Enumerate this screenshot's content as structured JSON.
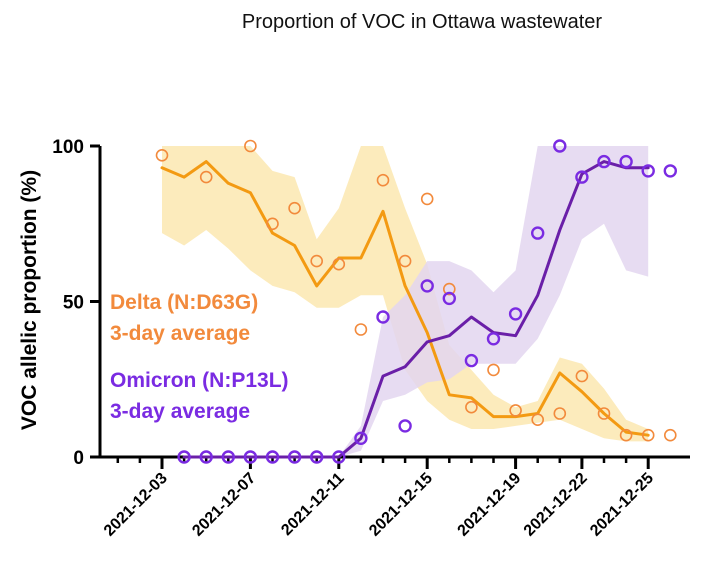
{
  "chart_data": {
    "type": "line",
    "title": "Proportion of VOC in Ottawa wastewater",
    "ylabel": "VOC allelic proportion (%)",
    "xlabel": "",
    "ylim": [
      0,
      100
    ],
    "yticks": [
      "0",
      "50",
      "100"
    ],
    "x_tick_labels": [
      "2021-12-03",
      "2021-12-07",
      "2021-12-11",
      "2021-12-15",
      "2021-12-19",
      "2021-12-22",
      "2021-12-25"
    ],
    "grid": false,
    "legend": "inline annotations",
    "annotations": [
      {
        "line1": "Delta (N:D63G)",
        "line2": "3-day average",
        "color": "#f28a3c"
      },
      {
        "line1": "Omicron (N:P13L)",
        "line2": "3-day average",
        "color": "#7a2be2"
      }
    ],
    "series": [
      {
        "name": "Delta (N:D63G)",
        "color": "#f28a3c",
        "line_color": "#f39a12",
        "band_color": "#fbe7b0",
        "points": [
          [
            "2021-12-03",
            97
          ],
          [
            "2021-12-05",
            90
          ],
          [
            "2021-12-07",
            100
          ],
          [
            "2021-12-08",
            75
          ],
          [
            "2021-12-09",
            80
          ],
          [
            "2021-12-10",
            63
          ],
          [
            "2021-12-11",
            62
          ],
          [
            "2021-12-12",
            41
          ],
          [
            "2021-12-13",
            89
          ],
          [
            "2021-12-14",
            63
          ],
          [
            "2021-12-15",
            83
          ],
          [
            "2021-12-16",
            54
          ],
          [
            "2021-12-17",
            16
          ],
          [
            "2021-12-18",
            28
          ],
          [
            "2021-12-19",
            15
          ],
          [
            "2021-12-20",
            12
          ],
          [
            "2021-12-21",
            14
          ],
          [
            "2021-12-22",
            26
          ],
          [
            "2021-12-23",
            14
          ],
          [
            "2021-12-24",
            7
          ],
          [
            "2021-12-25",
            7
          ],
          [
            "2021-12-26",
            7
          ]
        ],
        "average": [
          [
            "2021-12-03",
            93
          ],
          [
            "2021-12-04",
            90
          ],
          [
            "2021-12-05",
            95
          ],
          [
            "2021-12-06",
            88
          ],
          [
            "2021-12-07",
            85
          ],
          [
            "2021-12-08",
            72
          ],
          [
            "2021-12-09",
            68
          ],
          [
            "2021-12-10",
            55
          ],
          [
            "2021-12-11",
            64
          ],
          [
            "2021-12-12",
            64
          ],
          [
            "2021-12-13",
            79
          ],
          [
            "2021-12-14",
            55
          ],
          [
            "2021-12-15",
            40
          ],
          [
            "2021-12-16",
            20
          ],
          [
            "2021-12-17",
            19
          ],
          [
            "2021-12-18",
            13
          ],
          [
            "2021-12-19",
            13
          ],
          [
            "2021-12-20",
            14
          ],
          [
            "2021-12-21",
            27
          ],
          [
            "2021-12-22",
            21
          ],
          [
            "2021-12-23",
            14
          ],
          [
            "2021-12-24",
            8
          ],
          [
            "2021-12-25",
            7
          ]
        ],
        "band_low": [
          [
            "2021-12-03",
            72
          ],
          [
            "2021-12-04",
            68
          ],
          [
            "2021-12-05",
            73
          ],
          [
            "2021-12-06",
            67
          ],
          [
            "2021-12-07",
            60
          ],
          [
            "2021-12-08",
            55
          ],
          [
            "2021-12-09",
            53
          ],
          [
            "2021-12-10",
            48
          ],
          [
            "2021-12-11",
            48
          ],
          [
            "2021-12-12",
            52
          ],
          [
            "2021-12-13",
            52
          ],
          [
            "2021-12-14",
            28
          ],
          [
            "2021-12-15",
            18
          ],
          [
            "2021-12-16",
            12
          ],
          [
            "2021-12-17",
            9
          ],
          [
            "2021-12-18",
            9
          ],
          [
            "2021-12-19",
            10
          ],
          [
            "2021-12-20",
            11
          ],
          [
            "2021-12-21",
            12
          ],
          [
            "2021-12-22",
            9
          ],
          [
            "2021-12-23",
            6
          ],
          [
            "2021-12-24",
            5
          ],
          [
            "2021-12-25",
            5
          ]
        ],
        "band_high": [
          [
            "2021-12-03",
            100
          ],
          [
            "2021-12-04",
            100
          ],
          [
            "2021-12-05",
            100
          ],
          [
            "2021-12-06",
            100
          ],
          [
            "2021-12-07",
            100
          ],
          [
            "2021-12-08",
            92
          ],
          [
            "2021-12-09",
            90
          ],
          [
            "2021-12-10",
            70
          ],
          [
            "2021-12-11",
            80
          ],
          [
            "2021-12-12",
            100
          ],
          [
            "2021-12-13",
            100
          ],
          [
            "2021-12-14",
            80
          ],
          [
            "2021-12-15",
            62
          ],
          [
            "2021-12-16",
            36
          ],
          [
            "2021-12-17",
            28
          ],
          [
            "2021-12-18",
            20
          ],
          [
            "2021-12-19",
            16
          ],
          [
            "2021-12-20",
            18
          ],
          [
            "2021-12-21",
            32
          ],
          [
            "2021-12-22",
            30
          ],
          [
            "2021-12-23",
            22
          ],
          [
            "2021-12-24",
            12
          ],
          [
            "2021-12-25",
            9
          ]
        ]
      },
      {
        "name": "Omicron (N:P13L)",
        "color": "#7a2be2",
        "line_color": "#6a1fa8",
        "band_color": "#e3d6f0",
        "points": [
          [
            "2021-12-04",
            0
          ],
          [
            "2021-12-05",
            0
          ],
          [
            "2021-12-06",
            0
          ],
          [
            "2021-12-07",
            0
          ],
          [
            "2021-12-08",
            0
          ],
          [
            "2021-12-09",
            0
          ],
          [
            "2021-12-10",
            0
          ],
          [
            "2021-12-11",
            0
          ],
          [
            "2021-12-12",
            6
          ],
          [
            "2021-12-13",
            45
          ],
          [
            "2021-12-14",
            10
          ],
          [
            "2021-12-15",
            55
          ],
          [
            "2021-12-16",
            51
          ],
          [
            "2021-12-17",
            31
          ],
          [
            "2021-12-18",
            38
          ],
          [
            "2021-12-19",
            46
          ],
          [
            "2021-12-20",
            72
          ],
          [
            "2021-12-21",
            100
          ],
          [
            "2021-12-22",
            90
          ],
          [
            "2021-12-23",
            95
          ],
          [
            "2021-12-24",
            95
          ],
          [
            "2021-12-25",
            92
          ],
          [
            "2021-12-26",
            92
          ]
        ],
        "average": [
          [
            "2021-12-04",
            0
          ],
          [
            "2021-12-05",
            0
          ],
          [
            "2021-12-06",
            0
          ],
          [
            "2021-12-07",
            0
          ],
          [
            "2021-12-08",
            0
          ],
          [
            "2021-12-09",
            0
          ],
          [
            "2021-12-10",
            0
          ],
          [
            "2021-12-11",
            0
          ],
          [
            "2021-12-12",
            6
          ],
          [
            "2021-12-13",
            26
          ],
          [
            "2021-12-14",
            29
          ],
          [
            "2021-12-15",
            37
          ],
          [
            "2021-12-16",
            39
          ],
          [
            "2021-12-17",
            45
          ],
          [
            "2021-12-18",
            40
          ],
          [
            "2021-12-19",
            39
          ],
          [
            "2021-12-20",
            52
          ],
          [
            "2021-12-21",
            73
          ],
          [
            "2021-12-22",
            91
          ],
          [
            "2021-12-23",
            95
          ],
          [
            "2021-12-24",
            93
          ],
          [
            "2021-12-25",
            93
          ]
        ],
        "band_low": [
          [
            "2021-12-04",
            0
          ],
          [
            "2021-12-05",
            0
          ],
          [
            "2021-12-06",
            0
          ],
          [
            "2021-12-07",
            0
          ],
          [
            "2021-12-08",
            0
          ],
          [
            "2021-12-09",
            0
          ],
          [
            "2021-12-10",
            0
          ],
          [
            "2021-12-11",
            0
          ],
          [
            "2021-12-12",
            2
          ],
          [
            "2021-12-13",
            18
          ],
          [
            "2021-12-14",
            20
          ],
          [
            "2021-12-15",
            24
          ],
          [
            "2021-12-16",
            25
          ],
          [
            "2021-12-17",
            30
          ],
          [
            "2021-12-18",
            30
          ],
          [
            "2021-12-19",
            30
          ],
          [
            "2021-12-20",
            38
          ],
          [
            "2021-12-21",
            52
          ],
          [
            "2021-12-22",
            70
          ],
          [
            "2021-12-23",
            75
          ],
          [
            "2021-12-24",
            60
          ],
          [
            "2021-12-25",
            58
          ]
        ],
        "band_high": [
          [
            "2021-12-04",
            0
          ],
          [
            "2021-12-05",
            0
          ],
          [
            "2021-12-06",
            0
          ],
          [
            "2021-12-07",
            0
          ],
          [
            "2021-12-08",
            0
          ],
          [
            "2021-12-09",
            0
          ],
          [
            "2021-12-10",
            0
          ],
          [
            "2021-12-11",
            0
          ],
          [
            "2021-12-12",
            10
          ],
          [
            "2021-12-13",
            45
          ],
          [
            "2021-12-14",
            52
          ],
          [
            "2021-12-15",
            63
          ],
          [
            "2021-12-16",
            63
          ],
          [
            "2021-12-17",
            60
          ],
          [
            "2021-12-18",
            53
          ],
          [
            "2021-12-19",
            60
          ],
          [
            "2021-12-20",
            100
          ],
          [
            "2021-12-21",
            100
          ],
          [
            "2021-12-22",
            100
          ],
          [
            "2021-12-23",
            100
          ],
          [
            "2021-12-24",
            100
          ],
          [
            "2021-12-25",
            100
          ]
        ]
      }
    ]
  }
}
